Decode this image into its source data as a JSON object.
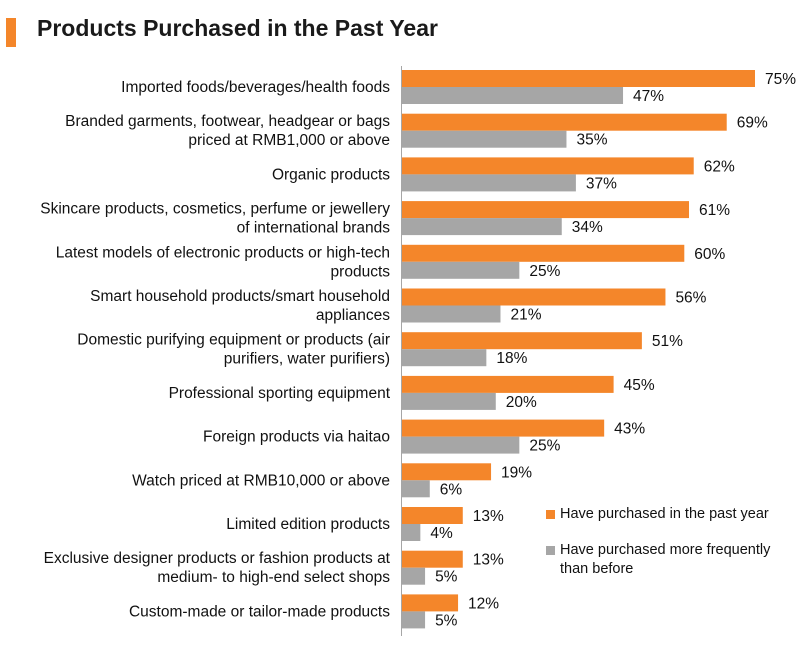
{
  "title": "Products Purchased in the Past Year",
  "colors": {
    "accent": "#F4862A",
    "series1": "#F4862A",
    "series2": "#A6A6A6",
    "axis": "#A6A6A6"
  },
  "chart_data": {
    "type": "bar",
    "orientation": "horizontal",
    "categories": [
      [
        "Imported foods/beverages/health foods"
      ],
      [
        "Branded garments, footwear, headgear or bags",
        "priced at RMB1,000 or above"
      ],
      [
        "Organic products"
      ],
      [
        "Skincare products, cosmetics, perfume or jewellery",
        "of international brands"
      ],
      [
        "Latest models of electronic products or high-tech",
        "products"
      ],
      [
        "Smart household products/smart household",
        "appliances"
      ],
      [
        "Domestic purifying equipment or products (air",
        "purifiers, water purifiers)"
      ],
      [
        "Professional sporting equipment"
      ],
      [
        "Foreign products via haitao"
      ],
      [
        "Watch priced at RMB10,000 or above"
      ],
      [
        "Limited edition products"
      ],
      [
        "Exclusive designer products or fashion products at",
        "medium- to high-end select shops"
      ],
      [
        "Custom-made or tailor-made products"
      ]
    ],
    "series": [
      {
        "name": "Have purchased in the past year",
        "values": [
          75,
          69,
          62,
          61,
          60,
          56,
          51,
          45,
          43,
          19,
          13,
          13,
          12
        ]
      },
      {
        "name": "Have purchased more frequently than before",
        "values": [
          47,
          35,
          37,
          34,
          25,
          21,
          18,
          20,
          25,
          6,
          4,
          5,
          5
        ]
      }
    ],
    "value_suffix": "%",
    "xlim": [
      0,
      80
    ],
    "grid": false,
    "legend_position": "bottom-right"
  },
  "legend": [
    {
      "lines": [
        "Have purchased in the past year"
      ]
    },
    {
      "lines": [
        "Have purchased more frequently",
        "than before"
      ]
    }
  ]
}
